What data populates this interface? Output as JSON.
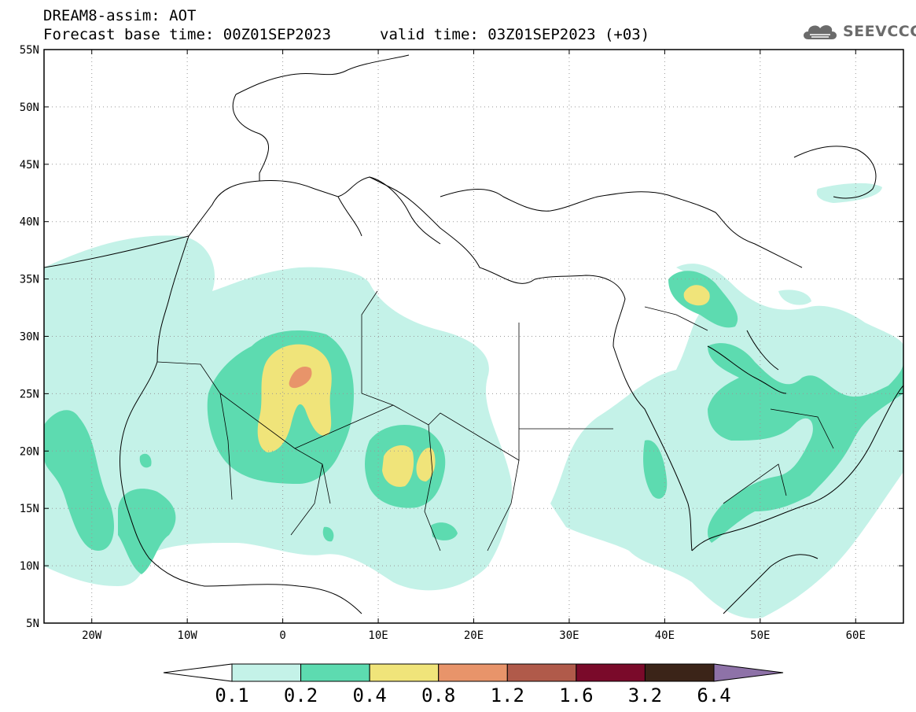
{
  "header": {
    "line1": "DREAM8-assim: AOT",
    "line2": "Forecast base time: 00Z01SEP2023",
    "valid": "valid time: 03Z01SEP2023 (+03)",
    "logo_text": "SEEVCCC"
  },
  "map": {
    "projection": "lat-lon",
    "lon_range": [
      -25,
      65
    ],
    "lat_range": [
      5,
      55
    ],
    "grid": "dotted",
    "lat_ticks": [
      "55N",
      "50N",
      "45N",
      "40N",
      "35N",
      "30N",
      "25N",
      "20N",
      "15N",
      "10N",
      "5N"
    ],
    "lon_ticks": [
      "20W",
      "10W",
      "0",
      "10E",
      "20E",
      "30E",
      "40E",
      "50E",
      "60E"
    ]
  },
  "legend": {
    "labels": [
      "0.1",
      "0.2",
      "0.4",
      "0.8",
      "1.2",
      "1.6",
      "3.2",
      "6.4"
    ],
    "colors": [
      "#c4f2e8",
      "#5ddbb0",
      "#f0e47a",
      "#e8946a",
      "#b05a4a",
      "#7a0a2a",
      "#3b2418",
      "#8e72a8"
    ]
  }
}
